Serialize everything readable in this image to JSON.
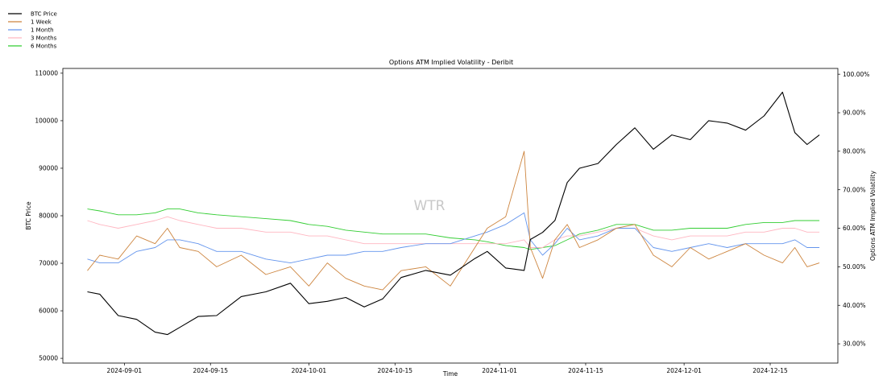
{
  "chart_data": {
    "type": "line",
    "title": "Options ATM Implied Volatility - Deribit",
    "xlabel": "Time",
    "ylabel": "BTC Price",
    "y2label": "Options ATM Implied Volatility",
    "watermark": "WTR",
    "xlim": [
      "2024-08-22",
      "2024-12-26"
    ],
    "ylim": [
      49000,
      111000
    ],
    "y2lim": [
      25,
      101.5
    ],
    "x_ticks": [
      "2024-09-01",
      "2024-09-15",
      "2024-10-01",
      "2024-10-15",
      "2024-11-01",
      "2024-11-15",
      "2024-12-01",
      "2024-12-15"
    ],
    "y_ticks": [
      50000,
      60000,
      70000,
      80000,
      90000,
      100000,
      110000
    ],
    "y2_ticks": [
      "30.00%",
      "40.00%",
      "50.00%",
      "60.00%",
      "70.00%",
      "80.00%",
      "90.00%",
      "100.00%"
    ],
    "legend_position": "top-left",
    "x": [
      "2024-08-26",
      "2024-08-28",
      "2024-08-31",
      "2024-09-03",
      "2024-09-06",
      "2024-09-08",
      "2024-09-10",
      "2024-09-13",
      "2024-09-16",
      "2024-09-20",
      "2024-09-24",
      "2024-09-28",
      "2024-10-01",
      "2024-10-04",
      "2024-10-07",
      "2024-10-10",
      "2024-10-13",
      "2024-10-16",
      "2024-10-20",
      "2024-10-24",
      "2024-10-28",
      "2024-10-30",
      "2024-11-02",
      "2024-11-05",
      "2024-11-06",
      "2024-11-08",
      "2024-11-10",
      "2024-11-12",
      "2024-11-14",
      "2024-11-17",
      "2024-11-20",
      "2024-11-23",
      "2024-11-26",
      "2024-11-29",
      "2024-12-02",
      "2024-12-05",
      "2024-12-08",
      "2024-12-11",
      "2024-12-14",
      "2024-12-17",
      "2024-12-19",
      "2024-12-21",
      "2024-12-23"
    ],
    "series": [
      {
        "name": "BTC Price",
        "axis": "left",
        "color": "#000000",
        "values": [
          64000,
          63500,
          59000,
          58200,
          55500,
          55000,
          56500,
          58800,
          59000,
          63000,
          64000,
          65800,
          61500,
          62000,
          62800,
          60800,
          62500,
          67000,
          68500,
          67500,
          71000,
          72500,
          69000,
          68500,
          75000,
          76500,
          79000,
          87000,
          90000,
          91000,
          95000,
          98500,
          94000,
          97000,
          96000,
          100000,
          99500,
          98000,
          101000,
          106000,
          97500,
          95000,
          97000
        ]
      },
      {
        "name": "1 Week",
        "axis": "right",
        "color": "#cd853f",
        "values": [
          49,
          53,
          52,
          58,
          56,
          60,
          55,
          54,
          50,
          53,
          48,
          50,
          45,
          51,
          47,
          45,
          44,
          49,
          50,
          45,
          55,
          60,
          63,
          80,
          55,
          47,
          57,
          61,
          55,
          57,
          60,
          61,
          53,
          50,
          55,
          52,
          54,
          56,
          53,
          51,
          55,
          50,
          51
        ]
      },
      {
        "name": "1 Month",
        "axis": "right",
        "color": "#6495ed",
        "values": [
          52,
          51,
          51,
          54,
          55,
          57,
          57,
          56,
          54,
          54,
          52,
          51,
          52,
          53,
          53,
          54,
          54,
          55,
          56,
          56,
          58,
          59,
          61,
          64,
          57,
          53,
          56,
          60,
          57,
          58,
          60,
          60,
          55,
          54,
          55,
          56,
          55,
          56,
          56,
          56,
          57,
          55,
          55
        ]
      },
      {
        "name": "3 Months",
        "axis": "right",
        "color": "#ffb6c1",
        "values": [
          62,
          61,
          60,
          61,
          62,
          63,
          62,
          61,
          60,
          60,
          59,
          59,
          58,
          58,
          57,
          56,
          56,
          56,
          56,
          56,
          56,
          56,
          56,
          57,
          55,
          55,
          57,
          58,
          58,
          59,
          60,
          60,
          58,
          57,
          58,
          58,
          58,
          59,
          59,
          60,
          60,
          59,
          59
        ]
      },
      {
        "name": "6 Months",
        "axis": "right",
        "color": "#32cd32",
        "values": [
          65,
          64.5,
          63.5,
          63.5,
          64,
          65,
          65,
          64,
          63.5,
          63,
          62.5,
          62,
          61,
          60.5,
          59.5,
          59,
          58.5,
          58.5,
          58.5,
          57.5,
          57,
          56.5,
          55.5,
          55,
          54.5,
          55,
          55.5,
          57,
          58.5,
          59.5,
          61,
          61,
          59.5,
          59.5,
          60,
          60,
          60,
          61,
          61.5,
          61.5,
          62,
          62,
          62
        ]
      }
    ]
  }
}
